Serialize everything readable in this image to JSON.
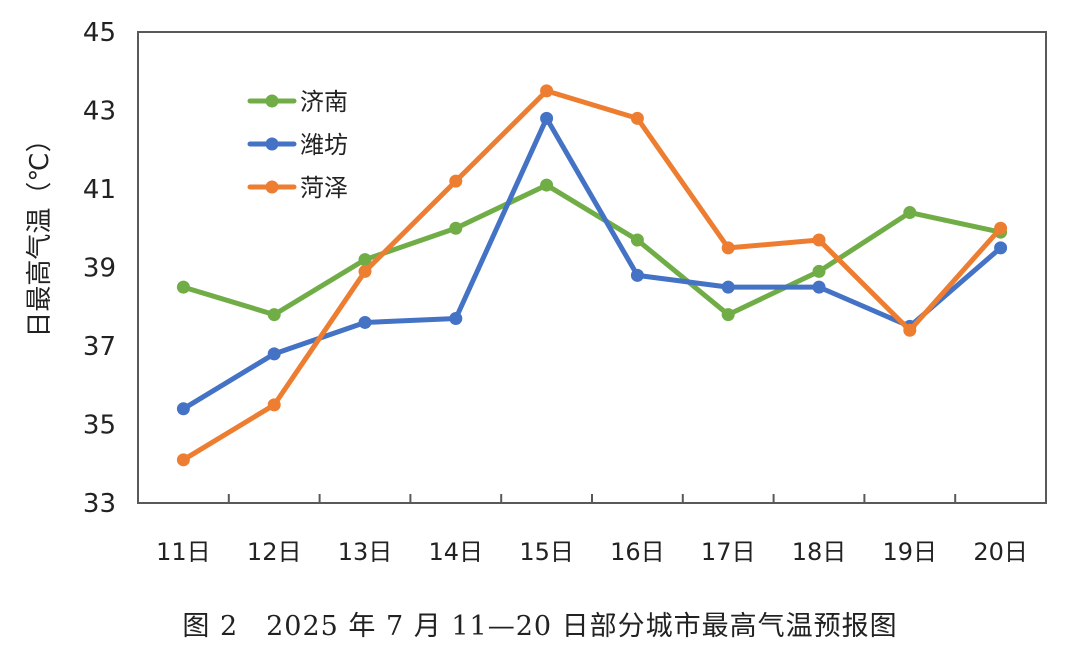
{
  "chart_data": {
    "type": "line",
    "categories": [
      "11日",
      "12日",
      "13日",
      "14日",
      "15日",
      "16日",
      "17日",
      "18日",
      "19日",
      "20日"
    ],
    "series": [
      {
        "name": "济南",
        "color": "#70AD47",
        "values": [
          38.5,
          37.8,
          39.2,
          40.0,
          41.1,
          39.7,
          37.8,
          38.9,
          40.4,
          39.9
        ]
      },
      {
        "name": "潍坊",
        "color": "#4472C4",
        "values": [
          35.4,
          36.8,
          37.6,
          37.7,
          42.8,
          38.8,
          38.5,
          38.5,
          37.5,
          39.5
        ]
      },
      {
        "name": "菏泽",
        "color": "#ED7D31",
        "values": [
          34.1,
          35.5,
          38.9,
          41.2,
          43.5,
          42.8,
          39.5,
          39.7,
          37.4,
          40.0
        ]
      }
    ],
    "ylabel": "日最高气温（℃）",
    "ylim": [
      33,
      45
    ],
    "yticks": [
      33,
      35,
      37,
      39,
      41,
      43,
      45
    ],
    "legend_position": "top-left",
    "grid": false
  },
  "caption": "图 2　2025 年 7 月 11—20 日部分城市最高气温预报图"
}
